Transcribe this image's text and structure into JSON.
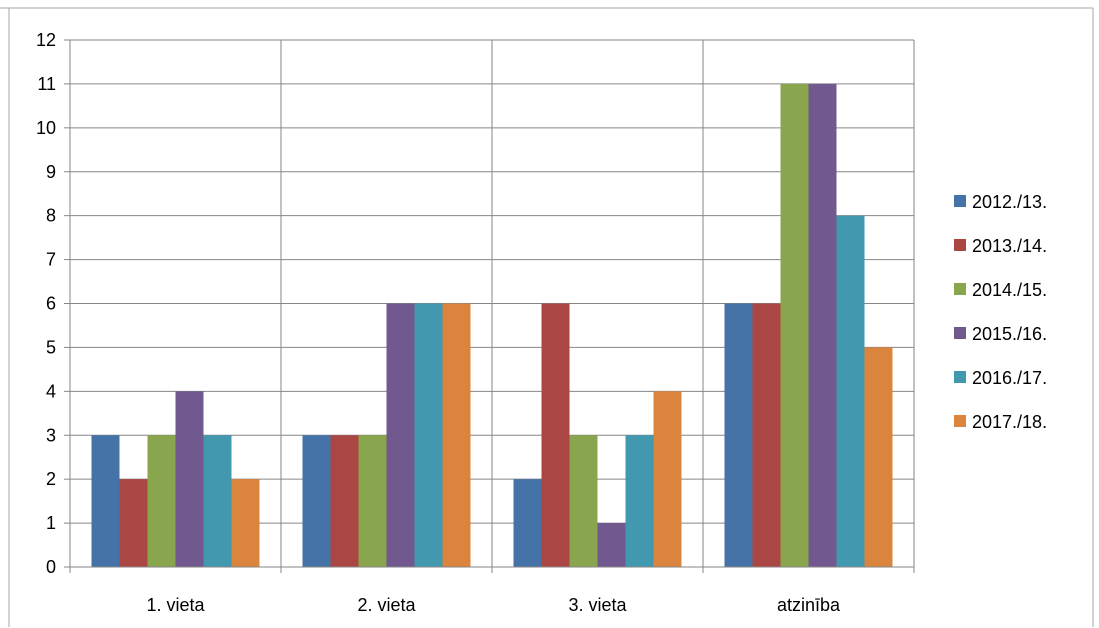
{
  "chart_data": {
    "type": "bar",
    "categories": [
      "1. vieta",
      "2. vieta",
      "3. vieta",
      "atzinība"
    ],
    "series": [
      {
        "name": "2012./13.",
        "color": "#4572a7",
        "values": [
          3,
          3,
          2,
          6
        ]
      },
      {
        "name": "2013./14.",
        "color": "#aa4643",
        "values": [
          2,
          3,
          6,
          6
        ]
      },
      {
        "name": "2014./15.",
        "color": "#89a54e",
        "values": [
          3,
          3,
          3,
          11
        ]
      },
      {
        "name": "2015./16.",
        "color": "#71588f",
        "values": [
          4,
          6,
          1,
          11
        ]
      },
      {
        "name": "2016./17.",
        "color": "#4198af",
        "values": [
          3,
          6,
          3,
          8
        ]
      },
      {
        "name": "2017./18.",
        "color": "#db843d",
        "values": [
          2,
          6,
          4,
          5
        ]
      }
    ],
    "y_ticks": [
      "0",
      "1",
      "2",
      "3",
      "4",
      "5",
      "6",
      "7",
      "8",
      "9",
      "10",
      "11",
      "12"
    ],
    "ylim": [
      0,
      12
    ],
    "grid": true,
    "legend_position": "right"
  }
}
